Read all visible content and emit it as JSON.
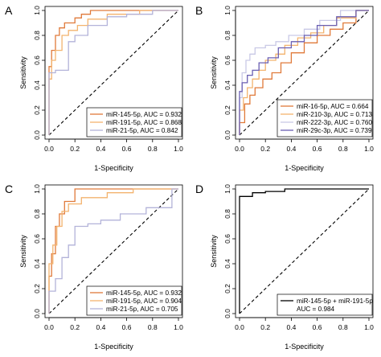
{
  "chart_data": [
    {
      "type": "line",
      "panel": "A",
      "xlabel": "1-Specificity",
      "ylabel": "Sensitivity",
      "xlim": [
        0.0,
        1.0
      ],
      "ylim": [
        0.0,
        1.0
      ],
      "xticks": [
        "0.0",
        "0.2",
        "0.4",
        "0.6",
        "0.8",
        "1.0"
      ],
      "yticks": [
        "0.0",
        "0.2",
        "0.4",
        "0.6",
        "0.8",
        "1.0"
      ],
      "reference_line": "diagonal",
      "legend_position": "bottom-right",
      "series": [
        {
          "name": "miR-145-5p, AUC = 0.932",
          "color": "#e07a3a",
          "x": [
            0,
            0,
            0.02,
            0.02,
            0.05,
            0.05,
            0.08,
            0.08,
            0.12,
            0.12,
            0.2,
            0.2,
            0.25,
            0.25,
            0.32,
            0.32,
            0.5,
            1.0
          ],
          "y": [
            0,
            0.55,
            0.55,
            0.68,
            0.68,
            0.8,
            0.8,
            0.86,
            0.86,
            0.9,
            0.9,
            0.94,
            0.94,
            0.97,
            0.97,
            1.0,
            1.0,
            1.0
          ]
        },
        {
          "name": "miR-191-5p, AUC = 0.868",
          "color": "#f3b36e",
          "x": [
            0,
            0,
            0.02,
            0.02,
            0.05,
            0.05,
            0.1,
            0.1,
            0.15,
            0.15,
            0.22,
            0.22,
            0.3,
            0.3,
            0.45,
            0.45,
            0.7,
            0.7,
            1.0
          ],
          "y": [
            0,
            0.45,
            0.45,
            0.6,
            0.6,
            0.68,
            0.68,
            0.8,
            0.8,
            0.84,
            0.84,
            0.88,
            0.88,
            0.93,
            0.93,
            0.97,
            0.97,
            1.0,
            1.0
          ]
        },
        {
          "name": "miR-21-5p, AUC = 0.842",
          "color": "#b3b3d9",
          "x": [
            0,
            0,
            0.05,
            0.05,
            0.15,
            0.15,
            0.2,
            0.2,
            0.3,
            0.3,
            0.45,
            0.45,
            0.6,
            0.6,
            0.8,
            0.8,
            1.0
          ],
          "y": [
            0,
            0.5,
            0.5,
            0.52,
            0.52,
            0.75,
            0.75,
            0.8,
            0.8,
            0.88,
            0.88,
            0.95,
            0.95,
            0.97,
            0.97,
            1.0,
            1.0
          ]
        }
      ]
    },
    {
      "type": "line",
      "panel": "B",
      "xlabel": "1-Specificity",
      "ylabel": "Sensitivity",
      "xlim": [
        0.0,
        1.0
      ],
      "ylim": [
        0.0,
        1.0
      ],
      "xticks": [
        "0.0",
        "0.2",
        "0.4",
        "0.6",
        "0.8",
        "1.0"
      ],
      "yticks": [
        "0.0",
        "0.2",
        "0.4",
        "0.6",
        "0.8",
        "1.0"
      ],
      "reference_line": "diagonal",
      "legend_position": "bottom-right",
      "series": [
        {
          "name": "miR-16-5p, AUC = 0.664",
          "color": "#e07a3a",
          "x": [
            0,
            0,
            0.04,
            0.04,
            0.08,
            0.08,
            0.12,
            0.12,
            0.18,
            0.18,
            0.25,
            0.25,
            0.32,
            0.32,
            0.4,
            0.4,
            0.5,
            0.5,
            0.6,
            0.6,
            0.7,
            0.7,
            0.8,
            0.8,
            0.9,
            0.9,
            1.0
          ],
          "y": [
            0,
            0.1,
            0.1,
            0.25,
            0.25,
            0.32,
            0.32,
            0.38,
            0.38,
            0.45,
            0.45,
            0.5,
            0.5,
            0.58,
            0.58,
            0.66,
            0.66,
            0.74,
            0.74,
            0.8,
            0.8,
            0.85,
            0.85,
            0.9,
            0.9,
            1.0,
            1.0
          ]
        },
        {
          "name": "miR-210-3p, AUC = 0.713",
          "color": "#f3b36e",
          "x": [
            0,
            0,
            0.03,
            0.03,
            0.06,
            0.06,
            0.1,
            0.1,
            0.15,
            0.15,
            0.2,
            0.2,
            0.28,
            0.28,
            0.35,
            0.35,
            0.45,
            0.45,
            0.55,
            0.55,
            0.65,
            0.65,
            0.75,
            0.75,
            0.9,
            0.9,
            1.0
          ],
          "y": [
            0,
            0.2,
            0.2,
            0.3,
            0.3,
            0.38,
            0.38,
            0.45,
            0.45,
            0.52,
            0.52,
            0.6,
            0.6,
            0.65,
            0.65,
            0.72,
            0.72,
            0.78,
            0.78,
            0.82,
            0.82,
            0.88,
            0.88,
            0.94,
            0.94,
            1.0,
            1.0
          ]
        },
        {
          "name": "miR-222-3p, AUC = 0.760",
          "color": "#c9c9e6",
          "x": [
            0,
            0,
            0.02,
            0.02,
            0.05,
            0.05,
            0.08,
            0.08,
            0.12,
            0.12,
            0.2,
            0.2,
            0.28,
            0.28,
            0.38,
            0.38,
            0.5,
            0.5,
            0.62,
            0.62,
            0.78,
            0.78,
            1.0
          ],
          "y": [
            0,
            0.3,
            0.3,
            0.5,
            0.5,
            0.6,
            0.6,
            0.65,
            0.65,
            0.7,
            0.7,
            0.72,
            0.72,
            0.75,
            0.75,
            0.8,
            0.8,
            0.85,
            0.85,
            0.92,
            0.92,
            1.0,
            1.0
          ]
        },
        {
          "name": "miR-29c-3p, AUC = 0.739",
          "color": "#6a5fb3",
          "x": [
            0,
            0,
            0.02,
            0.02,
            0.06,
            0.06,
            0.1,
            0.1,
            0.15,
            0.15,
            0.22,
            0.22,
            0.3,
            0.3,
            0.4,
            0.4,
            0.5,
            0.5,
            0.6,
            0.6,
            0.75,
            0.75,
            0.9,
            0.9,
            1.0
          ],
          "y": [
            0,
            0.35,
            0.35,
            0.42,
            0.42,
            0.48,
            0.48,
            0.52,
            0.52,
            0.58,
            0.58,
            0.62,
            0.62,
            0.7,
            0.7,
            0.75,
            0.75,
            0.8,
            0.8,
            0.88,
            0.88,
            0.95,
            0.95,
            1.0,
            1.0
          ]
        }
      ]
    },
    {
      "type": "line",
      "panel": "C",
      "xlabel": "1-Specificity",
      "ylabel": "Sensitivity",
      "xlim": [
        0.0,
        1.0
      ],
      "ylim": [
        0.0,
        1.0
      ],
      "xticks": [
        "0.0",
        "0.2",
        "0.4",
        "0.6",
        "0.8",
        "1.0"
      ],
      "yticks": [
        "0.0",
        "0.2",
        "0.4",
        "0.6",
        "0.8",
        "1.0"
      ],
      "reference_line": "diagonal",
      "legend_position": "bottom-right",
      "series": [
        {
          "name": "miR-145-5p, AUC = 0.932",
          "color": "#e07a3a",
          "x": [
            0,
            0,
            0.02,
            0.02,
            0.05,
            0.05,
            0.08,
            0.08,
            0.12,
            0.12,
            0.2,
            0.2,
            1.0
          ],
          "y": [
            0,
            0.3,
            0.3,
            0.48,
            0.48,
            0.7,
            0.7,
            0.8,
            0.8,
            0.9,
            0.9,
            1.0,
            1.0
          ]
        },
        {
          "name": "miR-191-5p, AUC = 0.904",
          "color": "#f3b36e",
          "x": [
            0,
            0,
            0.03,
            0.03,
            0.06,
            0.06,
            0.1,
            0.1,
            0.15,
            0.15,
            0.25,
            0.25,
            0.45,
            0.45,
            0.65,
            0.65,
            1.0
          ],
          "y": [
            0,
            0.4,
            0.4,
            0.55,
            0.55,
            0.7,
            0.7,
            0.82,
            0.82,
            0.88,
            0.88,
            0.93,
            0.93,
            0.97,
            0.97,
            1.0,
            1.0
          ]
        },
        {
          "name": "miR-21-5p, AUC = 0.705",
          "color": "#b3b3d9",
          "x": [
            0,
            0,
            0.05,
            0.05,
            0.1,
            0.1,
            0.15,
            0.15,
            0.2,
            0.2,
            0.3,
            0.3,
            0.4,
            0.4,
            0.55,
            0.55,
            0.75,
            0.75,
            0.95,
            0.95,
            1.0
          ],
          "y": [
            0,
            0.18,
            0.18,
            0.28,
            0.28,
            0.45,
            0.45,
            0.55,
            0.55,
            0.7,
            0.7,
            0.72,
            0.72,
            0.75,
            0.75,
            0.8,
            0.8,
            0.85,
            0.85,
            1.0,
            1.0
          ]
        }
      ]
    },
    {
      "type": "line",
      "panel": "D",
      "xlabel": "1-Specificity",
      "ylabel": "Sensitivity",
      "xlim": [
        0.0,
        1.0
      ],
      "ylim": [
        0.0,
        1.0
      ],
      "xticks": [
        "0.0",
        "0.2",
        "0.4",
        "0.6",
        "0.8",
        "1.0"
      ],
      "yticks": [
        "0.0",
        "0.2",
        "0.4",
        "0.6",
        "0.8",
        "1.0"
      ],
      "reference_line": "diagonal",
      "legend_position": "bottom-right",
      "series": [
        {
          "name": "miR-145-5p + miR-191-5p",
          "auc_label": "AUC = 0.984",
          "color": "#000000",
          "x": [
            0,
            0,
            0.1,
            0.1,
            0.2,
            0.2,
            0.35,
            0.35,
            1.0
          ],
          "y": [
            0,
            0.94,
            0.94,
            0.97,
            0.97,
            0.98,
            0.98,
            1.0,
            1.0
          ]
        }
      ]
    }
  ]
}
